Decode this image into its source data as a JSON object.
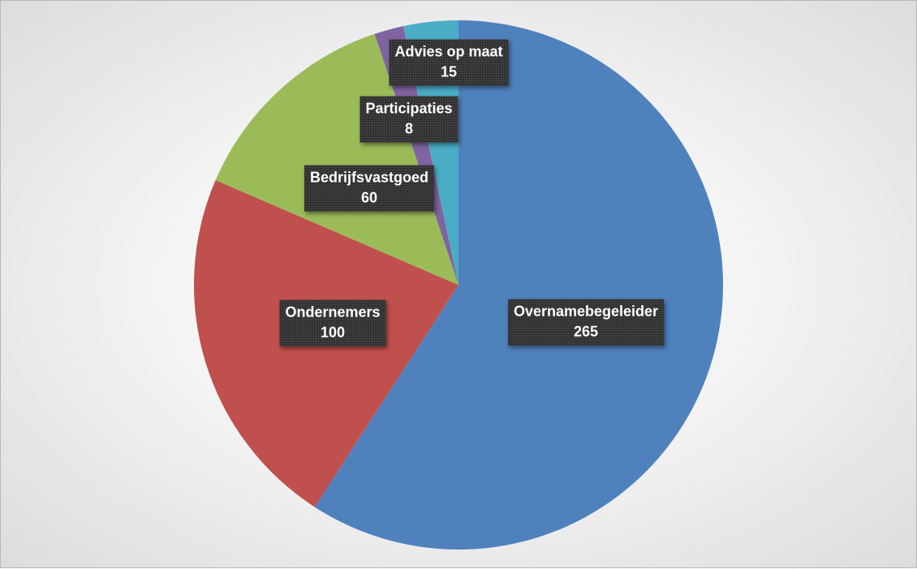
{
  "chart_data": {
    "type": "pie",
    "title": "",
    "slices": [
      {
        "label": "Overnamebegeleider",
        "value": 265,
        "color": "#4f81bd"
      },
      {
        "label": "Ondernemers",
        "value": 100,
        "color": "#c0504d"
      },
      {
        "label": "Bedrijfsvastgoed",
        "value": 60,
        "color": "#9bbb59"
      },
      {
        "label": "Participaties",
        "value": 8,
        "color": "#8064a2"
      },
      {
        "label": "Advies op maat",
        "value": 15,
        "color": "#4bacc6"
      }
    ],
    "legend": "none",
    "data_labels": "category name and value"
  }
}
